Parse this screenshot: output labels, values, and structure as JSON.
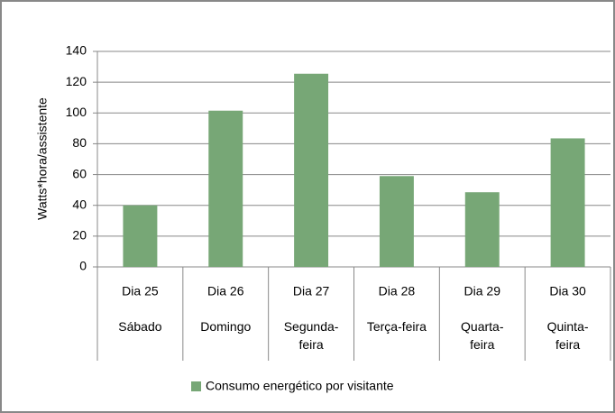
{
  "chart_data": {
    "type": "bar",
    "y_label": "Watts*hora/assistente",
    "categories": [
      "Dia 25",
      "Dia 26",
      "Dia 27",
      "Dia 28",
      "Dia 29",
      "Dia 30"
    ],
    "subcategories": [
      "Sábado",
      "Domingo",
      "Segunda-feira",
      "Terça-feira",
      "Quarta-feira",
      "Quinta-feira"
    ],
    "series": [
      {
        "name": "Consumo energético por visitante",
        "color": "#77a776",
        "values": [
          40,
          101.5,
          125.5,
          59,
          48.5,
          83.5
        ]
      }
    ],
    "ylim": [
      0,
      140
    ],
    "yticks": [
      0,
      20,
      40,
      60,
      80,
      100,
      120,
      140
    ],
    "grid": true,
    "legend": "bottom"
  }
}
